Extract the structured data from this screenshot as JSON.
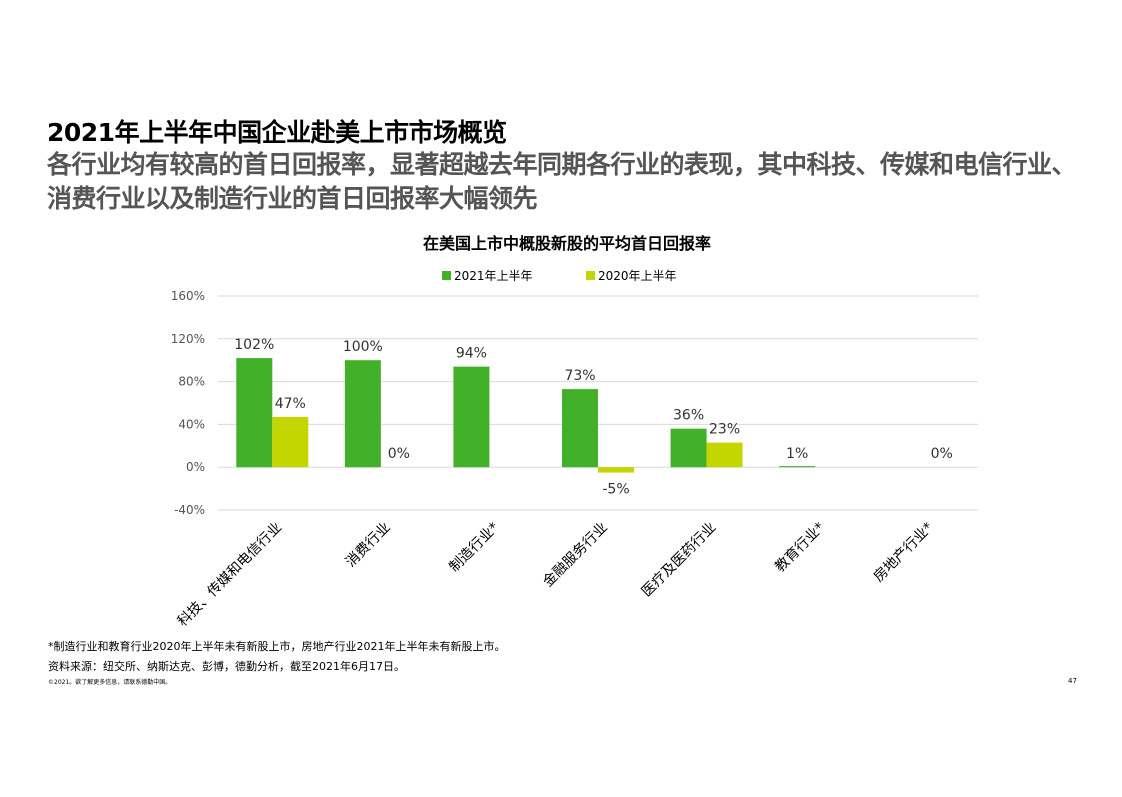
{
  "slide": {
    "title": "2021年上半年中国企业赴美上市市场概览",
    "subtitle": "各行业均有较高的首日回报率，显著超越去年同期各行业的表现，其中科技、传媒和电信行业、消费行业以及制造行业的首日回报率大幅领先",
    "footnote": "*制造行业和教育行业2020年上半年未有新股上市，房地产行业2021年上半年未有新股上市。",
    "source": "资料来源：纽交所、纳斯达克、彭博，德勤分析，截至2021年6月17日。",
    "copyright": "©2021。欲了解更多信息，请联系德勤中国。",
    "page_number": "47"
  },
  "chart_data": {
    "type": "bar",
    "title": "在美国上市中概股新股的平均首日回报率",
    "categories": [
      "科技、传媒和电信行业",
      "消费行业",
      "制造行业*",
      "金融服务行业",
      "医疗及医药行业",
      "教育行业*",
      "房地产行业*"
    ],
    "series": [
      {
        "name": "2021年上半年",
        "color": "#43b02a",
        "values": [
          102,
          100,
          94,
          73,
          36,
          1,
          null
        ],
        "labels": [
          "102%",
          "100%",
          "94%",
          "73%",
          "36%",
          "1%",
          ""
        ]
      },
      {
        "name": "2020年上半年",
        "color": "#c4d600",
        "values": [
          47,
          0,
          null,
          -5,
          23,
          null,
          0
        ],
        "labels": [
          "47%",
          "0%",
          "",
          "-5%",
          "23%",
          "",
          "0%"
        ]
      }
    ],
    "y_ticks": [
      "160%",
      "120%",
      "80%",
      "40%",
      "0%",
      "-40%"
    ],
    "y_tick_values": [
      160,
      120,
      80,
      40,
      0,
      -40
    ],
    "ylim": [
      -40,
      160
    ],
    "grid": true,
    "legend_position": "top-center"
  }
}
